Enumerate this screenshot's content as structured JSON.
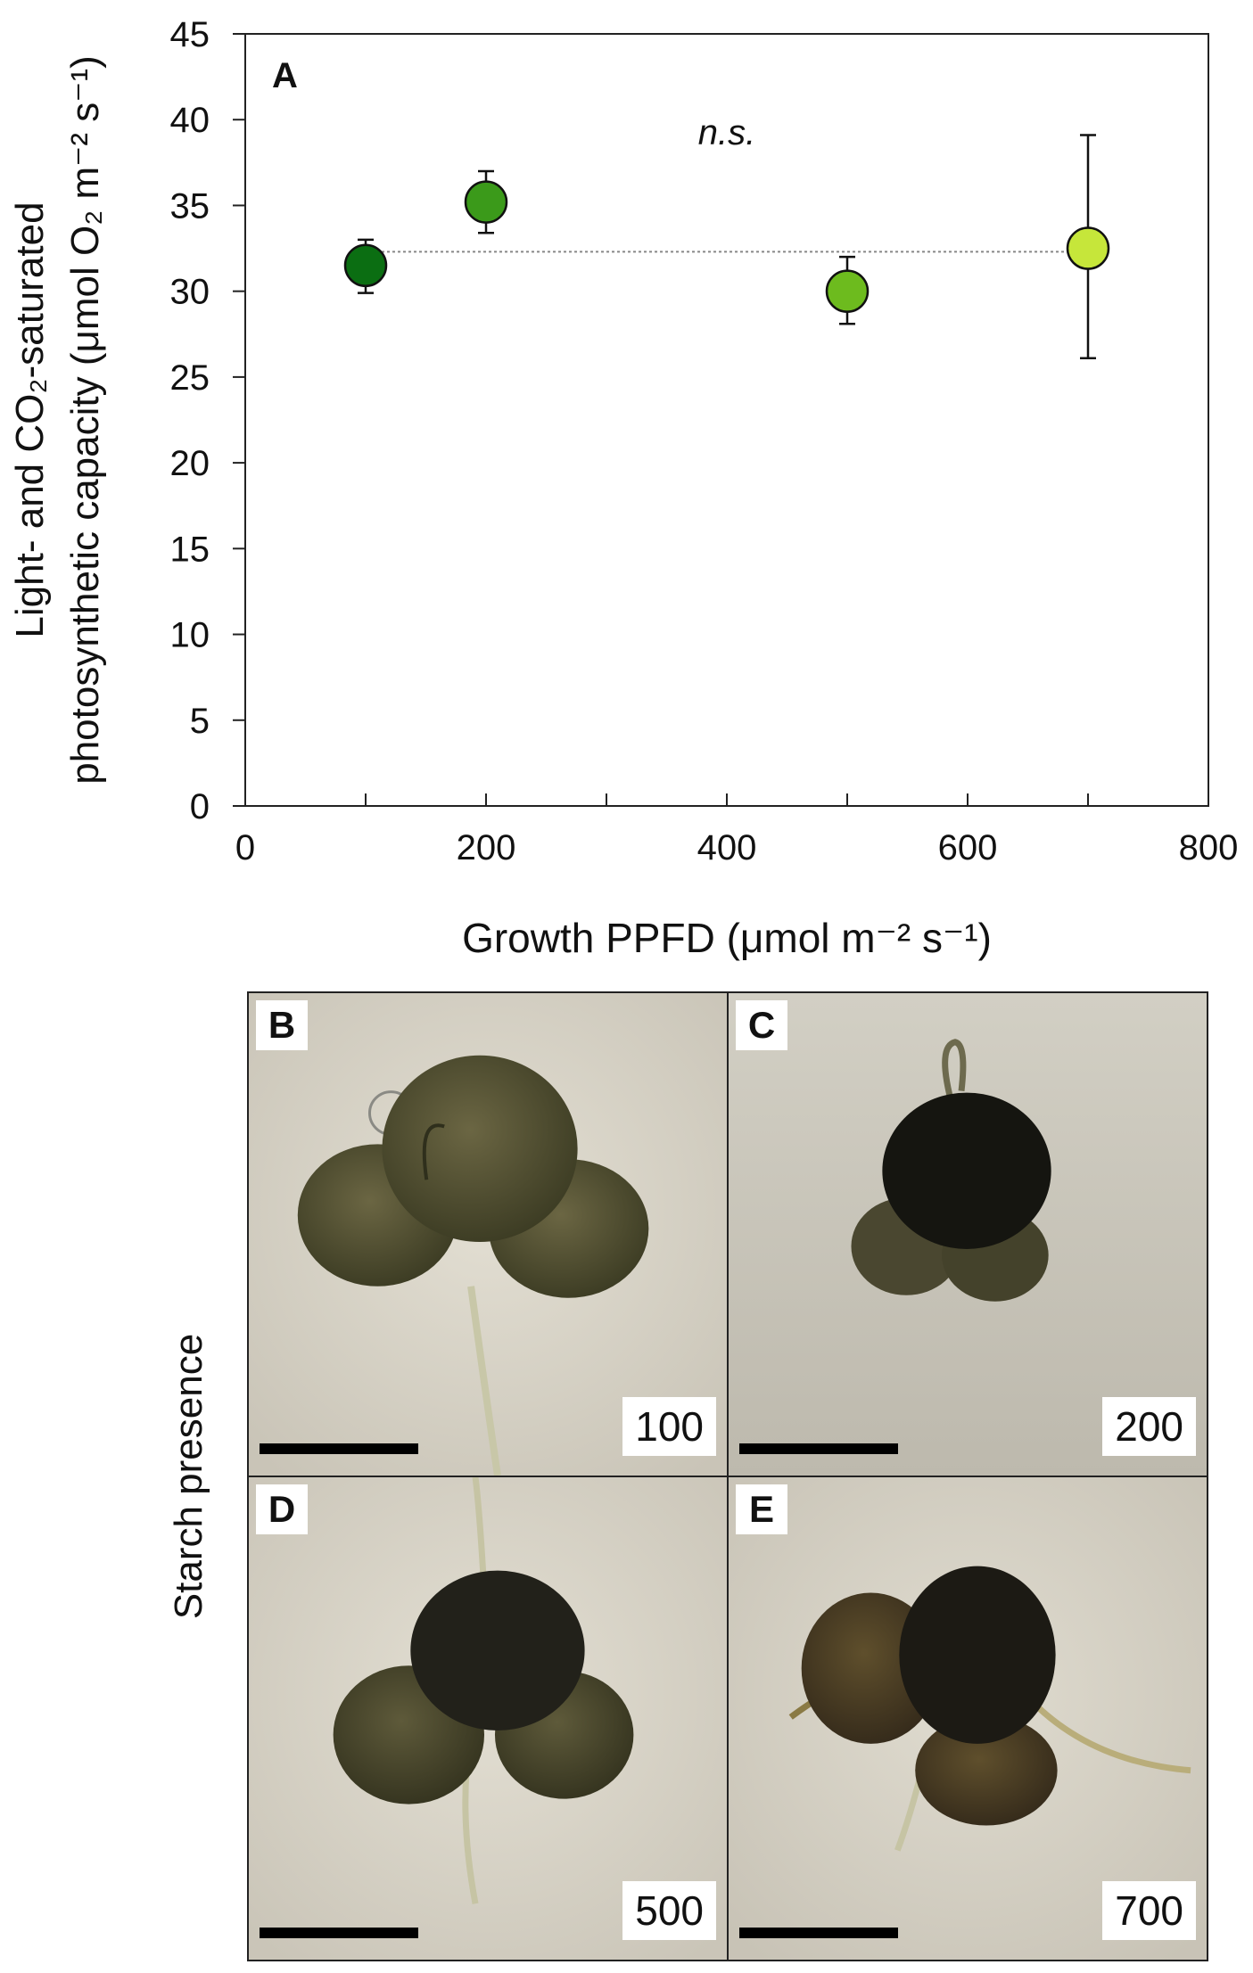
{
  "chart_data": {
    "type": "scatter",
    "panel_label": "A",
    "annotation": "n.s.",
    "xlabel": "Growth PPFD (μmol m⁻² s⁻¹)",
    "ylabel_line1": "Light- and CO₂-saturated",
    "ylabel_line2": "photosynthetic capacity (μmol O₂ m⁻² s⁻¹)",
    "xlim": [
      0,
      800
    ],
    "ylim": [
      0,
      45
    ],
    "x_ticks": [
      0,
      200,
      400,
      600,
      800
    ],
    "y_ticks": [
      0,
      5,
      10,
      15,
      20,
      25,
      30,
      35,
      40,
      45
    ],
    "mean_line": 32.3,
    "points": [
      {
        "x": 100,
        "y": 31.5,
        "err_low": 29.9,
        "err_high": 33.0,
        "color": "#0b6e12"
      },
      {
        "x": 200,
        "y": 35.2,
        "err_low": 33.4,
        "err_high": 37.0,
        "color": "#3b9a1a"
      },
      {
        "x": 500,
        "y": 30.0,
        "err_low": 28.1,
        "err_high": 32.0,
        "color": "#6dbb1e"
      },
      {
        "x": 700,
        "y": 32.5,
        "err_low": 26.1,
        "err_high": 39.1,
        "color": "#c6e63a"
      }
    ]
  },
  "photos": {
    "side_label": "Starch presence",
    "panels": [
      {
        "letter": "B",
        "ppfd": "100"
      },
      {
        "letter": "C",
        "ppfd": "200"
      },
      {
        "letter": "D",
        "ppfd": "500"
      },
      {
        "letter": "E",
        "ppfd": "700"
      }
    ]
  }
}
